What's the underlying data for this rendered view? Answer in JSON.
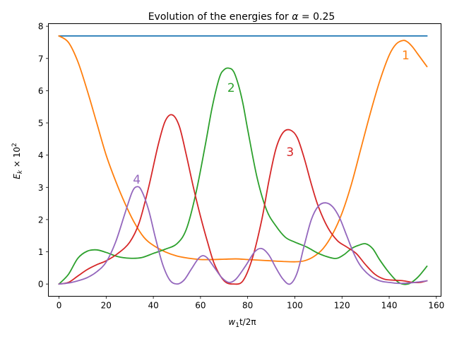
{
  "chart_data": {
    "type": "line",
    "title_prefix": "Evolution of the energies for ",
    "title_symbol": "α",
    "title_suffix": " = 0.25",
    "xlabel_main": "w",
    "xlabel_sub": "1",
    "xlabel_rest": "t/2π",
    "ylabel_main": "E",
    "ylabel_sub": "k",
    "ylabel_rest": " × 10",
    "ylabel_sup": "2",
    "xlim": [
      -4.5,
      162
    ],
    "ylim": [
      -0.38,
      8.08
    ],
    "xticks": [
      0,
      20,
      40,
      60,
      80,
      100,
      120,
      140,
      160
    ],
    "yticks": [
      0,
      1,
      2,
      3,
      4,
      5,
      6,
      7,
      8
    ],
    "grid": false,
    "series": [
      {
        "color": "#1f77b4",
        "x": [
          0,
          156
        ],
        "y": [
          7.7,
          7.7
        ]
      },
      {
        "label": "1",
        "color": "#ff7f0e",
        "label_at": [
          147,
          7.1
        ],
        "x": [
          0,
          4,
          8,
          12,
          16,
          20,
          24,
          28,
          32,
          36,
          40,
          45,
          50,
          55,
          60,
          65,
          70,
          75,
          80,
          85,
          90,
          95,
          100,
          104,
          108,
          112,
          116,
          120,
          124,
          128,
          132,
          136,
          140,
          143,
          146,
          148,
          150,
          152,
          154,
          156
        ],
        "y": [
          7.7,
          7.5,
          6.9,
          6.0,
          5.0,
          4.0,
          3.2,
          2.5,
          1.9,
          1.45,
          1.2,
          1.0,
          0.87,
          0.8,
          0.76,
          0.76,
          0.77,
          0.78,
          0.76,
          0.74,
          0.72,
          0.7,
          0.69,
          0.72,
          0.85,
          1.1,
          1.55,
          2.2,
          3.1,
          4.2,
          5.3,
          6.3,
          7.1,
          7.45,
          7.56,
          7.5,
          7.35,
          7.15,
          6.95,
          6.75
        ]
      },
      {
        "label": "2",
        "color": "#2ca02c",
        "label_at": [
          73,
          6.1
        ],
        "x": [
          0,
          4,
          8,
          12,
          16,
          20,
          25,
          30,
          35,
          40,
          45,
          50,
          54,
          58,
          62,
          65,
          68,
          70,
          72,
          74,
          76,
          78,
          80,
          84,
          88,
          92,
          96,
          100,
          105,
          110,
          115,
          118,
          121,
          124,
          127,
          130,
          133,
          136,
          140,
          144,
          148,
          152,
          156
        ],
        "y": [
          0,
          0.3,
          0.8,
          1.02,
          1.06,
          0.98,
          0.85,
          0.8,
          0.82,
          0.95,
          1.08,
          1.25,
          1.7,
          2.8,
          4.3,
          5.5,
          6.4,
          6.65,
          6.7,
          6.6,
          6.2,
          5.6,
          4.8,
          3.3,
          2.3,
          1.8,
          1.45,
          1.3,
          1.15,
          0.95,
          0.82,
          0.8,
          0.92,
          1.1,
          1.2,
          1.25,
          1.1,
          0.75,
          0.35,
          0.05,
          0.0,
          0.2,
          0.55
        ]
      },
      {
        "label": "3",
        "color": "#d62728",
        "label_at": [
          98,
          4.1
        ],
        "x": [
          0,
          4,
          8,
          12,
          16,
          20,
          25,
          30,
          34,
          38,
          42,
          45,
          48,
          51,
          54,
          57,
          60,
          63,
          66,
          70,
          74,
          78,
          82,
          86,
          89,
          92,
          95,
          98,
          101,
          104,
          107,
          110,
          114,
          118,
          122,
          126,
          130,
          134,
          138,
          142,
          146,
          150,
          153,
          156
        ],
        "y": [
          0,
          0.05,
          0.25,
          0.45,
          0.6,
          0.72,
          0.95,
          1.3,
          1.9,
          3.0,
          4.3,
          5.05,
          5.25,
          4.9,
          4.0,
          3.0,
          2.1,
          1.3,
          0.6,
          0.1,
          0.0,
          0.1,
          0.8,
          2.0,
          3.2,
          4.2,
          4.7,
          4.78,
          4.55,
          3.9,
          3.1,
          2.4,
          1.75,
          1.35,
          1.15,
          0.95,
          0.6,
          0.3,
          0.15,
          0.12,
          0.1,
          0.05,
          0.05,
          0.1
        ]
      },
      {
        "label": "4",
        "color": "#9467bd",
        "label_at": [
          33,
          3.25
        ],
        "x": [
          0,
          4,
          8,
          12,
          16,
          20,
          24,
          28,
          31,
          33,
          35,
          38,
          41,
          44,
          47,
          50,
          53,
          56,
          59,
          61,
          63,
          66,
          69,
          72,
          75,
          79,
          83,
          86,
          89,
          92,
          95,
          98,
          101,
          104,
          107,
          110,
          113,
          116,
          119,
          122,
          125,
          128,
          132,
          136,
          140,
          144,
          148,
          152,
          156
        ],
        "y": [
          0,
          0.03,
          0.1,
          0.2,
          0.38,
          0.68,
          1.3,
          2.2,
          2.85,
          3.02,
          2.9,
          2.3,
          1.4,
          0.6,
          0.12,
          0.0,
          0.12,
          0.45,
          0.78,
          0.88,
          0.8,
          0.5,
          0.2,
          0.05,
          0.15,
          0.55,
          1.0,
          1.1,
          0.9,
          0.5,
          0.15,
          0.0,
          0.35,
          1.2,
          2.0,
          2.42,
          2.52,
          2.4,
          2.05,
          1.5,
          0.95,
          0.55,
          0.25,
          0.1,
          0.05,
          0.02,
          0.03,
          0.06,
          0.1
        ]
      }
    ]
  }
}
